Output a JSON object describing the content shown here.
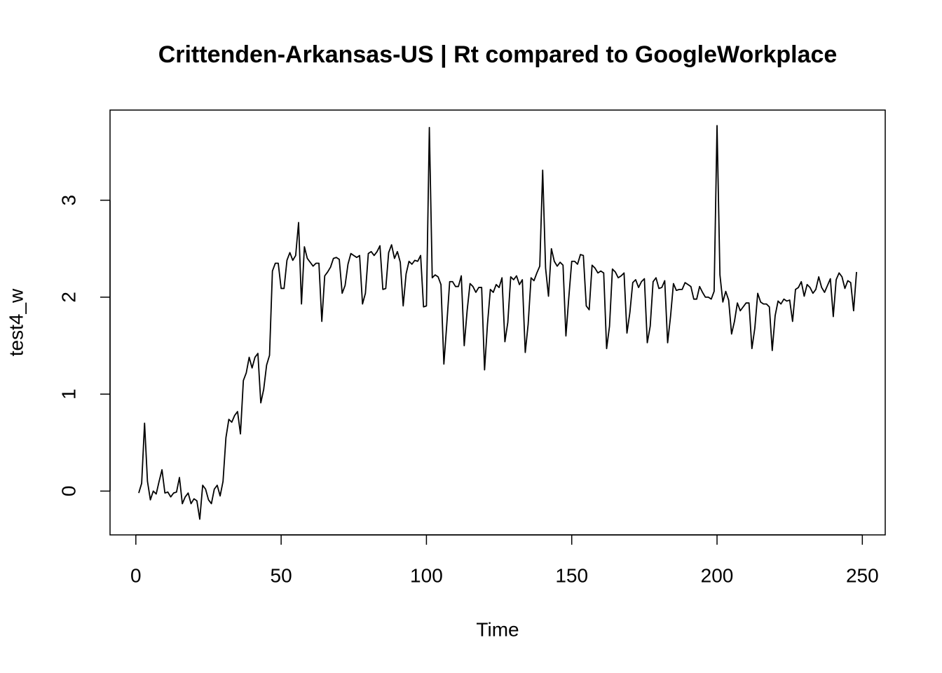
{
  "chart_data": {
    "type": "line",
    "title": "Crittenden-Arkansas-US | Rt compared to GoogleWorkplace",
    "x_label": "Time",
    "y_label": "test4_w",
    "x": [
      1,
      2,
      3,
      4,
      5,
      6,
      7,
      8,
      9,
      10,
      11,
      12,
      13,
      14,
      15,
      16,
      17,
      18,
      19,
      20,
      21,
      22,
      23,
      24,
      25,
      26,
      27,
      28,
      29,
      30,
      31,
      32,
      33,
      34,
      35,
      36,
      37,
      38,
      39,
      40,
      41,
      42,
      43,
      44,
      45,
      46,
      47,
      48,
      49,
      50,
      51,
      52,
      53,
      54,
      55,
      56,
      57,
      58,
      59,
      60,
      61,
      62,
      63,
      64,
      65,
      66,
      67,
      68,
      69,
      70,
      71,
      72,
      73,
      74,
      75,
      76,
      77,
      78,
      79,
      80,
      81,
      82,
      83,
      84,
      85,
      86,
      87,
      88,
      89,
      90,
      91,
      92,
      93,
      94,
      95,
      96,
      97,
      98,
      99,
      100,
      101,
      102,
      103,
      104,
      105,
      106,
      107,
      108,
      109,
      110,
      111,
      112,
      113,
      114,
      115,
      116,
      117,
      118,
      119,
      120,
      121,
      122,
      123,
      124,
      125,
      126,
      127,
      128,
      129,
      130,
      131,
      132,
      133,
      134,
      135,
      136,
      137,
      138,
      139,
      140,
      141,
      142,
      143,
      144,
      145,
      146,
      147,
      148,
      149,
      150,
      151,
      152,
      153,
      154,
      155,
      156,
      157,
      158,
      159,
      160,
      161,
      162,
      163,
      164,
      165,
      166,
      167,
      168,
      169,
      170,
      171,
      172,
      173,
      174,
      175,
      176,
      177,
      178,
      179,
      180,
      181,
      182,
      183,
      184,
      185,
      186,
      187,
      188,
      189,
      190,
      191,
      192,
      193,
      194,
      195,
      196,
      197,
      198,
      199,
      200,
      201,
      202,
      203,
      204,
      205,
      206,
      207,
      208,
      209,
      210,
      211,
      212,
      213,
      214,
      215,
      216,
      217,
      218,
      219,
      220,
      221,
      222,
      223,
      224,
      225,
      226,
      227,
      228,
      229,
      230,
      231,
      232,
      233,
      234,
      235,
      236,
      237,
      238,
      239,
      240,
      241,
      242,
      243,
      244,
      245,
      246,
      247,
      248
    ],
    "values": [
      -0.02,
      0.08,
      0.7,
      0.1,
      -0.09,
      0.0,
      -0.03,
      0.1,
      0.22,
      -0.02,
      -0.01,
      -0.06,
      -0.02,
      -0.01,
      0.14,
      -0.13,
      -0.06,
      -0.02,
      -0.13,
      -0.08,
      -0.1,
      -0.29,
      0.06,
      0.02,
      -0.09,
      -0.13,
      0.02,
      0.06,
      -0.05,
      0.1,
      0.55,
      0.74,
      0.71,
      0.78,
      0.82,
      0.59,
      1.14,
      1.22,
      1.38,
      1.27,
      1.38,
      1.42,
      0.91,
      1.05,
      1.3,
      1.4,
      2.27,
      2.35,
      2.35,
      2.09,
      2.09,
      2.38,
      2.46,
      2.38,
      2.43,
      2.77,
      1.93,
      2.52,
      2.4,
      2.36,
      2.32,
      2.35,
      2.35,
      1.75,
      2.22,
      2.26,
      2.31,
      2.4,
      2.41,
      2.39,
      2.04,
      2.12,
      2.34,
      2.45,
      2.43,
      2.41,
      2.43,
      1.93,
      2.04,
      2.45,
      2.47,
      2.43,
      2.47,
      2.53,
      2.08,
      2.09,
      2.46,
      2.54,
      2.4,
      2.47,
      2.36,
      1.91,
      2.24,
      2.37,
      2.34,
      2.38,
      2.37,
      2.43,
      1.9,
      1.91,
      3.75,
      2.2,
      2.23,
      2.21,
      2.13,
      1.31,
      1.72,
      2.16,
      2.16,
      2.11,
      2.11,
      2.22,
      1.5,
      1.86,
      2.14,
      2.11,
      2.05,
      2.1,
      2.1,
      1.25,
      1.72,
      2.08,
      2.05,
      2.13,
      2.1,
      2.2,
      1.54,
      1.74,
      2.21,
      2.18,
      2.22,
      2.13,
      2.18,
      1.43,
      1.72,
      2.2,
      2.17,
      2.25,
      2.32,
      3.31,
      2.3,
      2.01,
      2.5,
      2.37,
      2.32,
      2.36,
      2.33,
      1.6,
      2.0,
      2.37,
      2.37,
      2.34,
      2.44,
      2.43,
      1.91,
      1.87,
      2.33,
      2.3,
      2.25,
      2.27,
      2.25,
      1.47,
      1.7,
      2.29,
      2.26,
      2.2,
      2.22,
      2.25,
      1.63,
      1.84,
      2.15,
      2.18,
      2.1,
      2.16,
      2.19,
      1.53,
      1.7,
      2.16,
      2.2,
      2.09,
      2.1,
      2.17,
      1.53,
      1.8,
      2.14,
      2.07,
      2.08,
      2.08,
      2.15,
      2.13,
      2.11,
      1.98,
      1.98,
      2.11,
      2.05,
      2.0,
      2.0,
      1.98,
      2.06,
      3.77,
      2.23,
      1.95,
      2.06,
      1.97,
      1.62,
      1.75,
      1.94,
      1.86,
      1.9,
      1.94,
      1.94,
      1.47,
      1.68,
      2.04,
      1.95,
      1.93,
      1.93,
      1.9,
      1.45,
      1.81,
      1.96,
      1.93,
      1.98,
      1.96,
      1.97,
      1.75,
      2.08,
      2.1,
      2.16,
      2.01,
      2.13,
      2.1,
      2.04,
      2.08,
      2.21,
      2.1,
      2.05,
      2.12,
      2.19,
      1.8,
      2.18,
      2.25,
      2.21,
      2.09,
      2.17,
      2.15,
      1.86,
      2.26
    ],
    "color": "#000000",
    "xlim": [
      -8.88,
      257.88
    ],
    "xticks": [
      0,
      50,
      100,
      150,
      200,
      250
    ],
    "ylim": [
      -0.452,
      3.93
    ],
    "yticks": [
      0,
      1,
      2,
      3
    ]
  }
}
